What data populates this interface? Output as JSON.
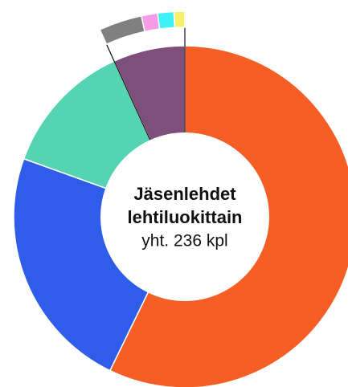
{
  "chart_data": {
    "type": "donut",
    "title": "Jäsenlehdet",
    "title_line2": "lehtiluokittain",
    "subtitle": "yht. 236 kpl",
    "values": [
      135,
      55,
      30,
      16
    ],
    "colors": [
      "#f55e24",
      "#2f5ce8",
      "#55d4b4",
      "#7d4f7a"
    ],
    "breakdown": {
      "of": 3,
      "values": [
        8,
        3,
        3,
        2
      ],
      "colors": [
        "#808080",
        "#f49ce8",
        "#3ff0f8",
        "#f8f068"
      ]
    }
  }
}
